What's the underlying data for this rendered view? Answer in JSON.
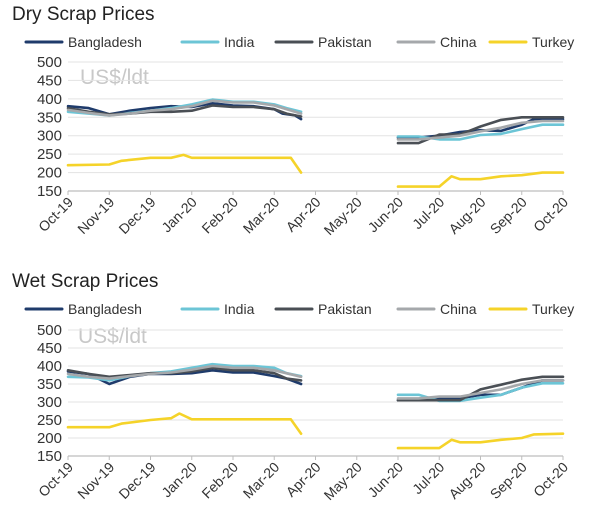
{
  "legend_items": [
    {
      "name": "Bangladesh",
      "color": "#1f3b6b"
    },
    {
      "name": "India",
      "color": "#6cc5d6"
    },
    {
      "name": "Pakistan",
      "color": "#4a4f55"
    },
    {
      "name": "China",
      "color": "#a5a8ab"
    },
    {
      "name": "Turkey",
      "color": "#f5d329"
    }
  ],
  "x_ticks": [
    "Oct-19",
    "Nov-19",
    "Dec-19",
    "Jan-20",
    "Feb-20",
    "Mar-20",
    "Apr-20",
    "May-20",
    "Jun-20",
    "Jul-20",
    "Aug-20",
    "Sep-20",
    "Oct-20"
  ],
  "y_ticks": [
    "500",
    "450",
    "400",
    "350",
    "300",
    "250",
    "200",
    "150"
  ],
  "chart_data": [
    {
      "type": "line",
      "title": "Dry Scrap Prices",
      "unit_label": "US$/ldt",
      "x_axis": "months since Oct-19",
      "ylim": [
        150,
        500
      ],
      "grid": true,
      "legend": "top",
      "series": [
        {
          "name": "Bangladesh",
          "color": "#1f3b6b",
          "segments": [
            [
              [
                0,
                380
              ],
              [
                0.5,
                375
              ],
              [
                1,
                358
              ],
              [
                1.5,
                368
              ],
              [
                2,
                375
              ],
              [
                2.5,
                380
              ],
              [
                3,
                378
              ],
              [
                3.5,
                388
              ],
              [
                4,
                382
              ],
              [
                4.5,
                380
              ],
              [
                5,
                372
              ],
              [
                5.2,
                360
              ],
              [
                5.5,
                355
              ],
              [
                5.65,
                345
              ]
            ],
            [
              [
                8,
                295
              ],
              [
                8.5,
                295
              ],
              [
                9,
                300
              ],
              [
                9.5,
                310
              ],
              [
                10,
                315
              ],
              [
                10.5,
                313
              ],
              [
                11,
                330
              ],
              [
                11.3,
                345
              ],
              [
                12,
                345
              ]
            ]
          ]
        },
        {
          "name": "India",
          "color": "#6cc5d6",
          "segments": [
            [
              [
                0,
                365
              ],
              [
                0.5,
                360
              ],
              [
                1,
                355
              ],
              [
                1.5,
                362
              ],
              [
                2,
                368
              ],
              [
                2.5,
                375
              ],
              [
                3,
                385
              ],
              [
                3.5,
                398
              ],
              [
                4,
                392
              ],
              [
                4.5,
                392
              ],
              [
                5,
                385
              ],
              [
                5.3,
                375
              ],
              [
                5.65,
                365
              ]
            ],
            [
              [
                8,
                298
              ],
              [
                8.5,
                298
              ],
              [
                9,
                290
              ],
              [
                9.5,
                290
              ],
              [
                10,
                302
              ],
              [
                10.5,
                305
              ],
              [
                11,
                318
              ],
              [
                11.5,
                330
              ],
              [
                12,
                330
              ]
            ]
          ]
        },
        {
          "name": "Pakistan",
          "color": "#4a4f55",
          "segments": [
            [
              [
                0,
                375
              ],
              [
                0.5,
                365
              ],
              [
                1,
                358
              ],
              [
                1.5,
                360
              ],
              [
                2,
                365
              ],
              [
                2.5,
                365
              ],
              [
                3,
                368
              ],
              [
                3.5,
                382
              ],
              [
                4,
                378
              ],
              [
                4.5,
                378
              ],
              [
                5,
                372
              ],
              [
                5.3,
                360
              ],
              [
                5.65,
                352
              ]
            ],
            [
              [
                8,
                280
              ],
              [
                8.5,
                280
              ],
              [
                9,
                303
              ],
              [
                9.5,
                303
              ],
              [
                10,
                325
              ],
              [
                10.5,
                343
              ],
              [
                11,
                350
              ],
              [
                11.5,
                350
              ],
              [
                12,
                350
              ]
            ]
          ]
        },
        {
          "name": "China",
          "color": "#a5a8ab",
          "segments": [
            [
              [
                0,
                370
              ],
              [
                0.5,
                362
              ],
              [
                1,
                355
              ],
              [
                1.5,
                360
              ],
              [
                2,
                368
              ],
              [
                2.5,
                372
              ],
              [
                3,
                380
              ],
              [
                3.5,
                395
              ],
              [
                4,
                390
              ],
              [
                4.5,
                390
              ],
              [
                5,
                382
              ],
              [
                5.65,
                360
              ]
            ],
            [
              [
                8,
                290
              ],
              [
                8.5,
                290
              ],
              [
                9,
                295
              ],
              [
                9.5,
                300
              ],
              [
                10,
                312
              ],
              [
                10.5,
                322
              ],
              [
                11,
                335
              ],
              [
                11.5,
                340
              ],
              [
                12,
                340
              ]
            ]
          ]
        },
        {
          "name": "Turkey",
          "color": "#f5d329",
          "segments": [
            [
              [
                0,
                220
              ],
              [
                1,
                222
              ],
              [
                1.3,
                232
              ],
              [
                2,
                240
              ],
              [
                2.5,
                240
              ],
              [
                2.8,
                248
              ],
              [
                3,
                240
              ],
              [
                3.5,
                240
              ],
              [
                4,
                240
              ],
              [
                4.5,
                240
              ],
              [
                5,
                240
              ],
              [
                5.4,
                240
              ],
              [
                5.65,
                200
              ]
            ],
            [
              [
                8,
                162
              ],
              [
                9,
                162
              ],
              [
                9.3,
                190
              ],
              [
                9.5,
                182
              ],
              [
                10,
                182
              ],
              [
                10.5,
                190
              ],
              [
                11,
                193
              ],
              [
                11.5,
                200
              ],
              [
                12,
                200
              ]
            ]
          ]
        }
      ]
    },
    {
      "type": "line",
      "title": "Wet Scrap Prices",
      "unit_label": "US$/ldt",
      "x_axis": "months since Oct-19",
      "ylim": [
        150,
        500
      ],
      "grid": true,
      "legend": "top",
      "series": [
        {
          "name": "Bangladesh",
          "color": "#1f3b6b",
          "segments": [
            [
              [
                0,
                385
              ],
              [
                0.5,
                378
              ],
              [
                1,
                350
              ],
              [
                1.5,
                370
              ],
              [
                2,
                378
              ],
              [
                2.5,
                378
              ],
              [
                3,
                380
              ],
              [
                3.5,
                388
              ],
              [
                4,
                382
              ],
              [
                4.5,
                382
              ],
              [
                5,
                372
              ],
              [
                5.3,
                365
              ],
              [
                5.65,
                350
              ]
            ],
            [
              [
                8,
                305
              ],
              [
                8.5,
                305
              ],
              [
                9,
                310
              ],
              [
                9.5,
                310
              ],
              [
                10,
                320
              ],
              [
                10.5,
                320
              ],
              [
                11,
                340
              ],
              [
                11.5,
                360
              ],
              [
                12,
                360
              ]
            ]
          ]
        },
        {
          "name": "India",
          "color": "#6cc5d6",
          "segments": [
            [
              [
                0,
                370
              ],
              [
                0.5,
                368
              ],
              [
                1,
                360
              ],
              [
                1.5,
                372
              ],
              [
                2,
                380
              ],
              [
                2.5,
                385
              ],
              [
                3,
                395
              ],
              [
                3.5,
                405
              ],
              [
                4,
                400
              ],
              [
                4.5,
                400
              ],
              [
                5,
                395
              ],
              [
                5.3,
                380
              ],
              [
                5.65,
                372
              ]
            ],
            [
              [
                8,
                320
              ],
              [
                8.5,
                320
              ],
              [
                9,
                303
              ],
              [
                9.5,
                303
              ],
              [
                10,
                312
              ],
              [
                10.5,
                320
              ],
              [
                11,
                340
              ],
              [
                11.5,
                352
              ],
              [
                12,
                352
              ]
            ]
          ]
        },
        {
          "name": "Pakistan",
          "color": "#4a4f55",
          "segments": [
            [
              [
                0,
                388
              ],
              [
                0.5,
                378
              ],
              [
                1,
                370
              ],
              [
                1.5,
                375
              ],
              [
                2,
                380
              ],
              [
                2.5,
                380
              ],
              [
                3,
                385
              ],
              [
                3.5,
                395
              ],
              [
                4,
                388
              ],
              [
                4.5,
                388
              ],
              [
                5,
                380
              ],
              [
                5.3,
                365
              ],
              [
                5.65,
                360
              ]
            ],
            [
              [
                8,
                305
              ],
              [
                8.5,
                305
              ],
              [
                9,
                305
              ],
              [
                9.5,
                305
              ],
              [
                10,
                335
              ],
              [
                10.5,
                348
              ],
              [
                11,
                362
              ],
              [
                11.5,
                370
              ],
              [
                12,
                370
              ]
            ]
          ]
        },
        {
          "name": "China",
          "color": "#a5a8ab",
          "segments": [
            [
              [
                0,
                378
              ],
              [
                0.5,
                370
              ],
              [
                1,
                365
              ],
              [
                1.5,
                372
              ],
              [
                2,
                378
              ],
              [
                2.5,
                382
              ],
              [
                3,
                390
              ],
              [
                3.5,
                400
              ],
              [
                4,
                395
              ],
              [
                4.5,
                395
              ],
              [
                5,
                388
              ],
              [
                5.65,
                370
              ]
            ],
            [
              [
                8,
                310
              ],
              [
                8.5,
                310
              ],
              [
                9,
                315
              ],
              [
                9.5,
                315
              ],
              [
                10,
                325
              ],
              [
                10.5,
                335
              ],
              [
                11,
                350
              ],
              [
                11.5,
                360
              ],
              [
                12,
                360
              ]
            ]
          ]
        },
        {
          "name": "Turkey",
          "color": "#f5d329",
          "segments": [
            [
              [
                0,
                230
              ],
              [
                1,
                230
              ],
              [
                1.3,
                240
              ],
              [
                2,
                250
              ],
              [
                2.5,
                255
              ],
              [
                2.7,
                268
              ],
              [
                3,
                252
              ],
              [
                3.5,
                252
              ],
              [
                4,
                252
              ],
              [
                4.5,
                252
              ],
              [
                5,
                252
              ],
              [
                5.4,
                252
              ],
              [
                5.65,
                212
              ]
            ],
            [
              [
                8,
                172
              ],
              [
                9,
                172
              ],
              [
                9.3,
                195
              ],
              [
                9.5,
                188
              ],
              [
                10,
                188
              ],
              [
                10.5,
                195
              ],
              [
                11,
                200
              ],
              [
                11.3,
                210
              ],
              [
                12,
                212
              ]
            ]
          ]
        }
      ]
    }
  ]
}
